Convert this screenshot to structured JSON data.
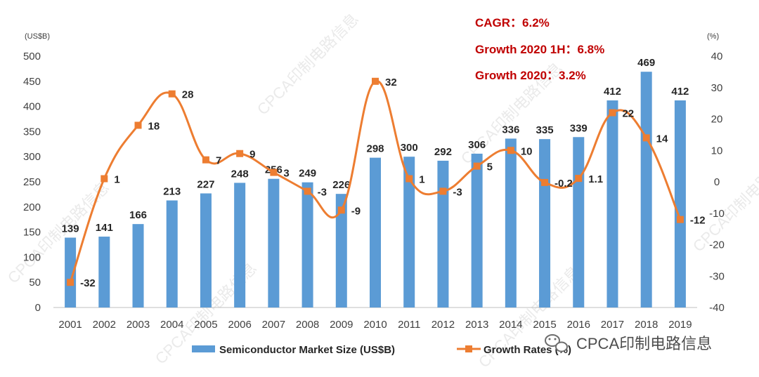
{
  "chart_data": {
    "type": "bar",
    "categories": [
      "2001",
      "2002",
      "2003",
      "2004",
      "2005",
      "2006",
      "2007",
      "2008",
      "2009",
      "2010",
      "2011",
      "2012",
      "2013",
      "2014",
      "2015",
      "2016",
      "2017",
      "2018",
      "2019"
    ],
    "series": [
      {
        "name": "Semiconductor Market Size (US$B)",
        "type": "bar",
        "axis": "left",
        "color": "#5b9bd5",
        "values": [
          139,
          141,
          166,
          213,
          227,
          248,
          256,
          249,
          226,
          298,
          300,
          292,
          306,
          336,
          335,
          339,
          412,
          469,
          412
        ],
        "labels": [
          "139",
          "141",
          "166",
          "213",
          "227",
          "248",
          "256",
          "249",
          "226",
          "298",
          "300",
          "292",
          "306",
          "336",
          "335",
          "339",
          "412",
          "469",
          "412"
        ]
      },
      {
        "name": "Growth Rates (%)",
        "type": "line",
        "smooth": true,
        "axis": "right",
        "color": "#ed7d31",
        "values": [
          -32,
          1,
          18,
          28,
          7,
          9,
          3,
          -3,
          -9,
          32,
          1,
          -3,
          5,
          10,
          -0.2,
          1.1,
          22,
          14,
          -12
        ],
        "labels": [
          "-32",
          "1",
          "18",
          "28",
          "7",
          "9",
          "3",
          "-3",
          "-9",
          "32",
          "1",
          "-3",
          "5",
          "10",
          "-0.2",
          "1.1",
          "22",
          "14",
          "-12"
        ]
      }
    ],
    "y_left": {
      "unit": "(US$B)",
      "range": [
        0,
        500
      ],
      "ticks": [
        "0",
        "50",
        "100",
        "150",
        "200",
        "250",
        "300",
        "350",
        "400",
        "450",
        "500"
      ]
    },
    "y_right": {
      "unit": "(%)",
      "range": [
        -40,
        40
      ],
      "ticks": [
        "-40",
        "-30",
        "-20",
        "-10",
        "0",
        "10",
        "20",
        "30",
        "40"
      ]
    },
    "annotations": [
      {
        "id": "cagr",
        "text": "CAGR：6.2%"
      },
      {
        "id": "g2020h1",
        "text": "Growth 2020 1H：6.8%"
      },
      {
        "id": "g2020",
        "text": "Growth 2020：3.2%"
      }
    ],
    "legend": {
      "placement": "bottom",
      "items": [
        "Semiconductor Market Size (US$B)",
        "Growth Rates (%)"
      ]
    },
    "grid": false
  },
  "watermark": {
    "text": "CPCA印制电路信息",
    "corner_text": "CPCA印制电路信息"
  },
  "colors": {
    "bar": "#5b9bd5",
    "line": "#ed7d31",
    "annotation": "#c00000",
    "axis": "#bfbfbf",
    "text": "#404040"
  }
}
